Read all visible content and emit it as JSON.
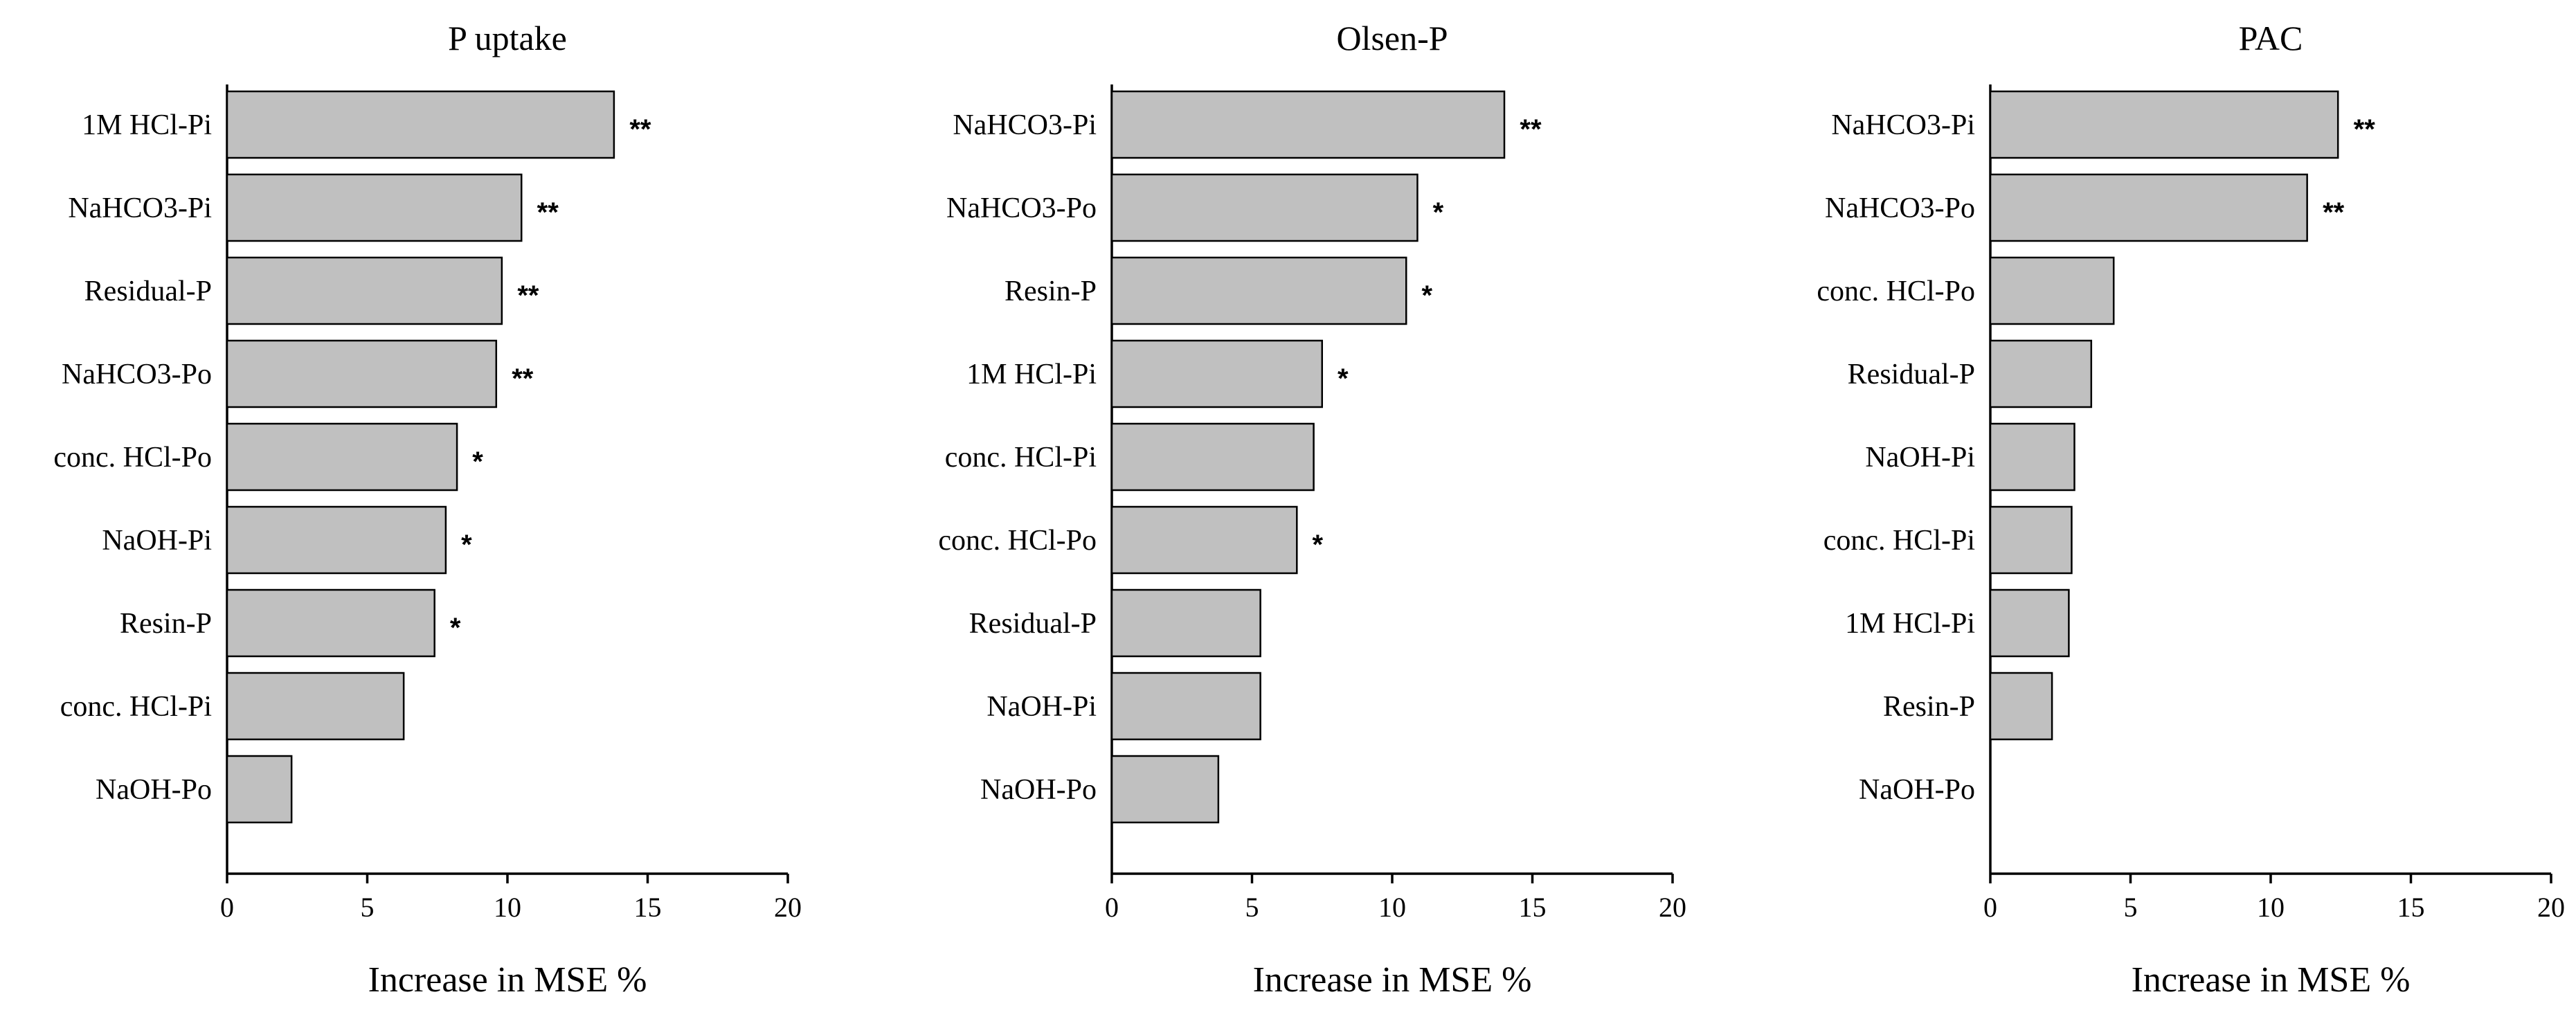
{
  "chart_data": [
    {
      "type": "bar",
      "orientation": "horizontal",
      "title": "P uptake",
      "xlabel": "Increase in MSE %",
      "ylabel": "",
      "xlim": [
        0,
        20
      ],
      "xticks": [
        0,
        5,
        10,
        15,
        20
      ],
      "grid": false,
      "bar_color": "#c0c0c0",
      "categories": [
        "1M HCl-Pi",
        "NaHCO3-Pi",
        "Residual-P",
        "NaHCO3-Po",
        "conc. HCl-Po",
        "NaOH-Pi",
        "Resin-P",
        "conc. HCl-Pi",
        "NaOH-Po"
      ],
      "values": [
        13.8,
        10.5,
        9.8,
        9.6,
        8.2,
        7.8,
        7.4,
        6.3,
        2.3
      ],
      "significance": [
        "**",
        "**",
        "**",
        "**",
        "*",
        "*",
        "*",
        "",
        ""
      ]
    },
    {
      "type": "bar",
      "orientation": "horizontal",
      "title": "Olsen-P",
      "xlabel": "Increase in MSE %",
      "ylabel": "",
      "xlim": [
        0,
        20
      ],
      "xticks": [
        0,
        5,
        10,
        15,
        20
      ],
      "grid": false,
      "bar_color": "#c0c0c0",
      "categories": [
        "NaHCO3-Pi",
        "NaHCO3-Po",
        "Resin-P",
        "1M HCl-Pi",
        "conc. HCl-Pi",
        "conc. HCl-Po",
        "Residual-P",
        "NaOH-Pi",
        "NaOH-Po"
      ],
      "values": [
        14.0,
        10.9,
        10.5,
        7.5,
        7.2,
        6.6,
        5.3,
        5.3,
        3.8
      ],
      "significance": [
        "**",
        "*",
        "*",
        "*",
        "",
        "*",
        "",
        "",
        ""
      ]
    },
    {
      "type": "bar",
      "orientation": "horizontal",
      "title": "PAC",
      "xlabel": "Increase in MSE %",
      "ylabel": "",
      "xlim": [
        0,
        20
      ],
      "xticks": [
        0,
        5,
        10,
        15,
        20
      ],
      "grid": false,
      "bar_color": "#c0c0c0",
      "categories": [
        "NaHCO3-Pi",
        "NaHCO3-Po",
        "conc. HCl-Po",
        "Residual-P",
        "NaOH-Pi",
        "conc. HCl-Pi",
        "1M HCl-Pi",
        "Resin-P",
        "NaOH-Po"
      ],
      "values": [
        12.4,
        11.3,
        4.4,
        3.6,
        3.0,
        2.9,
        2.8,
        2.2,
        0
      ],
      "significance": [
        "**",
        "**",
        "",
        "",
        "",
        "",
        "",
        "",
        ""
      ]
    }
  ]
}
